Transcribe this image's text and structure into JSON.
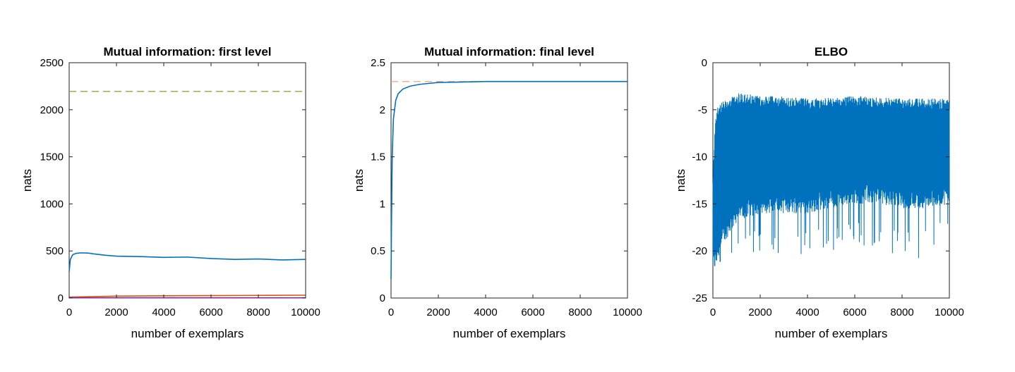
{
  "chart_data": [
    {
      "type": "line",
      "title": "Mutual information: first level",
      "xlabel": "number of exemplars",
      "ylabel": "nats",
      "xlim": [
        0,
        10000
      ],
      "ylim": [
        0,
        2500
      ],
      "xticks": [
        0,
        2000,
        4000,
        6000,
        8000,
        10000
      ],
      "yticks": [
        0,
        500,
        1000,
        1500,
        2000,
        2500
      ],
      "xtick_labels": [
        "0",
        "2000",
        "4000",
        "6000",
        "8000",
        "10000"
      ],
      "ytick_labels": [
        "0",
        "500",
        "1000",
        "1500",
        "2000",
        "2500"
      ],
      "grid": false,
      "series": [
        {
          "style": "dashed",
          "color": "#77AC30",
          "x": [
            0,
            10000
          ],
          "y": [
            2195,
            2195
          ]
        },
        {
          "style": "solid",
          "color": "#0072BD",
          "x": [
            0,
            50,
            150,
            300,
            500,
            800,
            1000,
            1500,
            2000,
            3000,
            4000,
            5000,
            6000,
            7000,
            8000,
            9000,
            10000
          ],
          "y": [
            280,
            410,
            460,
            475,
            480,
            478,
            470,
            455,
            445,
            440,
            432,
            435,
            420,
            410,
            415,
            405,
            410
          ]
        },
        {
          "style": "solid",
          "color": "#D95319",
          "x": [
            0,
            2000,
            4000,
            6000,
            8000,
            10000
          ],
          "y": [
            10,
            20,
            24,
            26,
            28,
            30
          ]
        },
        {
          "style": "solid",
          "color": "#7E2F8E",
          "x": [
            0,
            10000
          ],
          "y": [
            2,
            2
          ]
        }
      ]
    },
    {
      "type": "line",
      "title": "Mutual information: final level",
      "xlabel": "number of exemplars",
      "ylabel": "nats",
      "xlim": [
        0,
        10000
      ],
      "ylim": [
        0,
        2.5
      ],
      "xticks": [
        0,
        2000,
        4000,
        6000,
        8000,
        10000
      ],
      "yticks": [
        0,
        0.5,
        1,
        1.5,
        2,
        2.5
      ],
      "xtick_labels": [
        "0",
        "2000",
        "4000",
        "6000",
        "8000",
        "10000"
      ],
      "ytick_labels": [
        "0",
        "0.5",
        "1",
        "1.5",
        "2",
        "2.5"
      ],
      "grid": false,
      "series": [
        {
          "style": "dashed",
          "color": "#F4A582",
          "x": [
            0,
            10000
          ],
          "y": [
            2.3,
            2.3
          ]
        },
        {
          "style": "solid",
          "color": "#0072BD",
          "x": [
            0,
            20,
            50,
            100,
            200,
            300,
            500,
            800,
            1200,
            1600,
            2000,
            3000,
            4000,
            5000,
            6000,
            7000,
            8000,
            9000,
            10000
          ],
          "y": [
            0.2,
            0.8,
            1.5,
            1.9,
            2.1,
            2.17,
            2.22,
            2.25,
            2.27,
            2.28,
            2.29,
            2.295,
            2.3,
            2.3,
            2.3,
            2.3,
            2.3,
            2.3,
            2.3
          ]
        }
      ]
    },
    {
      "type": "line",
      "title": "ELBO",
      "xlabel": "number of exemplars",
      "ylabel": "nats",
      "xlim": [
        0,
        10000
      ],
      "ylim": [
        -25,
        0
      ],
      "xticks": [
        0,
        2000,
        4000,
        6000,
        8000,
        10000
      ],
      "yticks": [
        -25,
        -20,
        -15,
        -10,
        -5,
        0
      ],
      "xtick_labels": [
        "0",
        "2000",
        "4000",
        "6000",
        "8000",
        "10000"
      ],
      "ytick_labels": [
        "-25",
        "-20",
        "-15",
        "-10",
        "-5",
        "0"
      ],
      "grid": false,
      "series": [
        {
          "style": "noisy-band",
          "color": "#0072BD",
          "x": [
            0,
            100,
            200,
            500,
            1000,
            2000,
            3000,
            4000,
            5000,
            6000,
            7000,
            8000,
            9000,
            10000
          ],
          "upper": [
            -12,
            -6,
            -4.5,
            -4,
            -3.2,
            -3.5,
            -3.6,
            -3.8,
            -3.7,
            -3.5,
            -3.7,
            -3.8,
            -3.8,
            -3.8
          ],
          "lower": [
            -22,
            -22,
            -21,
            -19,
            -17,
            -16,
            -16,
            -16,
            -15.5,
            -15,
            -15,
            -15.5,
            -15.5,
            -15
          ],
          "spike_min": [
            -22.7,
            -22.8,
            -22,
            -21.5,
            -20.5,
            -20.2,
            -20.6,
            -20.7,
            -20.1,
            -19.8,
            -20,
            -20.8,
            -20.8,
            -17.5
          ]
        }
      ]
    }
  ]
}
